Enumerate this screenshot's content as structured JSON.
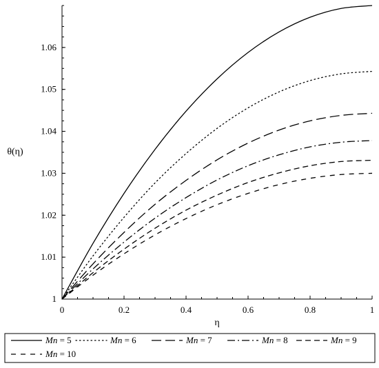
{
  "chart_data": {
    "type": "line",
    "xlabel": "η",
    "ylabel": "θ(η)",
    "xlim": [
      0,
      1
    ],
    "ylim": [
      1,
      1.07
    ],
    "x_ticks": [
      0,
      0.2,
      0.4,
      0.6,
      0.8,
      1
    ],
    "x_tick_labels": [
      "0",
      "0.2",
      "0.4",
      "0.6",
      "0.8",
      "1"
    ],
    "y_ticks": [
      1,
      1.01,
      1.02,
      1.03,
      1.04,
      1.05,
      1.06
    ],
    "y_tick_labels": [
      "1",
      "1.01",
      "1.02",
      "1.03",
      "1.04",
      "1.05",
      "1.06"
    ],
    "grid": false,
    "legend_position": "bottom",
    "legend_var": "Mn",
    "legend_eq": " = ",
    "x": [
      0,
      0.1,
      0.2,
      0.3,
      0.4,
      0.5,
      0.6,
      0.7,
      0.8,
      0.9,
      1.0
    ],
    "series": [
      {
        "name": "5",
        "dash": "solid",
        "values": [
          1.0,
          1.0133,
          1.0252,
          1.0357,
          1.0448,
          1.0525,
          1.0588,
          1.0637,
          1.0672,
          1.0693,
          1.07
        ]
      },
      {
        "name": "6",
        "dash": "dot",
        "values": [
          1.0,
          1.0103,
          1.0195,
          1.0277,
          1.0347,
          1.0407,
          1.0456,
          1.0494,
          1.0521,
          1.0537,
          1.0543
        ]
      },
      {
        "name": "7",
        "dash": "longdash",
        "values": [
          1.0,
          1.0084,
          1.0159,
          1.0226,
          1.0283,
          1.0332,
          1.0372,
          1.0403,
          1.0425,
          1.0438,
          1.0443
        ]
      },
      {
        "name": "8",
        "dash": "dashdot",
        "values": [
          1.0,
          1.0072,
          1.0136,
          1.0193,
          1.0242,
          1.0284,
          1.0318,
          1.0344,
          1.0363,
          1.0374,
          1.0378
        ]
      },
      {
        "name": "9",
        "dash": "dash",
        "values": [
          1.0,
          1.0063,
          1.0119,
          1.0169,
          1.0212,
          1.0248,
          1.0278,
          1.0301,
          1.0318,
          1.0328,
          1.0331
        ]
      },
      {
        "name": "10",
        "dash": "shortdash",
        "values": [
          1.0,
          1.0057,
          1.0108,
          1.0153,
          1.0192,
          1.0225,
          1.0252,
          1.0273,
          1.0288,
          1.0297,
          1.03
        ]
      }
    ]
  }
}
